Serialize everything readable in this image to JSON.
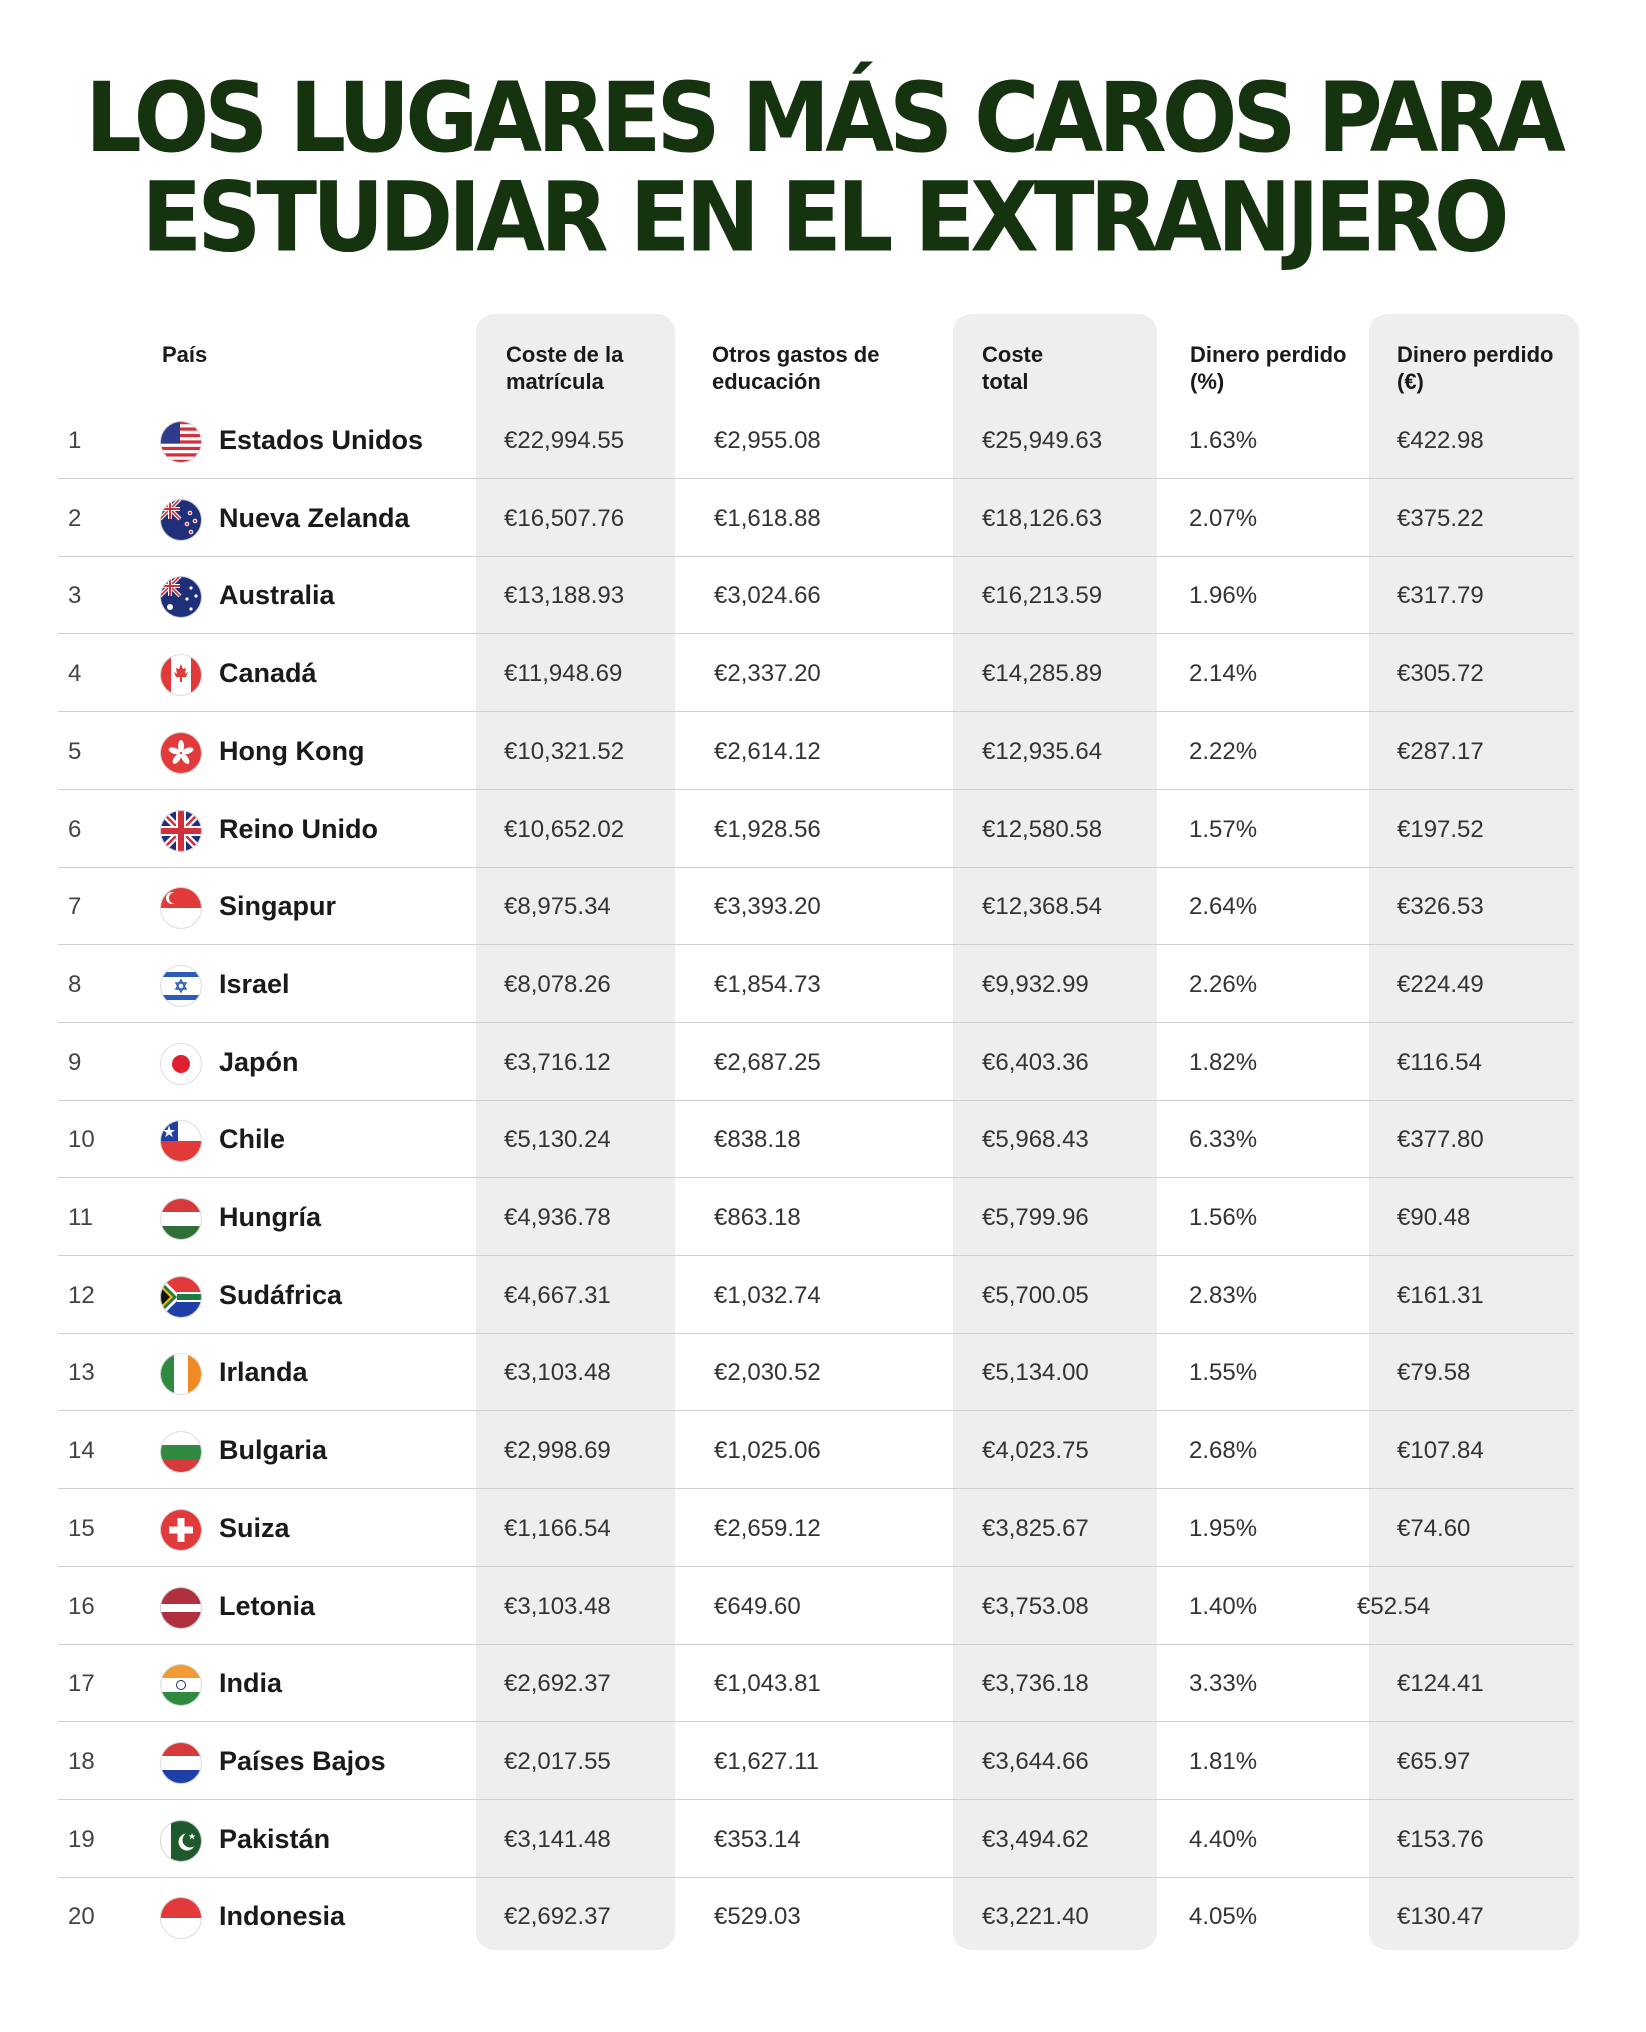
{
  "title": {
    "line1": "LOS LUGARES MÁS CAROS PARA",
    "line2": "ESTUDIAR EN EL EXTRANJERO"
  },
  "colors": {
    "title": "#15330f",
    "highlight_band": "#eeefec",
    "separator": "#cfd1cc"
  },
  "headers": {
    "country": "País",
    "tuition": [
      "Coste de la",
      "matrícula"
    ],
    "other": [
      "Otros gastos de",
      "educación"
    ],
    "total": [
      "Coste",
      "total"
    ],
    "lost_pct": [
      "Dinero perdido",
      "(%)"
    ],
    "lost_eur": [
      "Dinero perdido",
      "(€)"
    ]
  },
  "chart_data": {
    "type": "table",
    "columns": [
      "",
      "País",
      "Coste de la matrícula",
      "Otros gastos de educación",
      "Coste total",
      "Dinero perdido (%)",
      "Dinero perdido (€)"
    ],
    "rows": [
      {
        "rank": "1",
        "flag": "usa-flag",
        "country": "Estados Unidos",
        "tuition": "€22,994.55",
        "other": "€2,955.08",
        "total": "€25,949.63",
        "lost_pct": "1.63%",
        "lost_eur": "€422.98"
      },
      {
        "rank": "2",
        "flag": "new-zealand-flag",
        "country": "Nueva Zelanda",
        "tuition": "€16,507.76",
        "other": "€1,618.88",
        "total": "€18,126.63",
        "lost_pct": "2.07%",
        "lost_eur": "€375.22"
      },
      {
        "rank": "3",
        "flag": "australia-flag",
        "country": "Australia",
        "tuition": "€13,188.93",
        "other": "€3,024.66",
        "total": "€16,213.59",
        "lost_pct": "1.96%",
        "lost_eur": "€317.79"
      },
      {
        "rank": "4",
        "flag": "canada-flag",
        "country": "Canadá",
        "tuition": "€11,948.69",
        "other": "€2,337.20",
        "total": "€14,285.89",
        "lost_pct": "2.14%",
        "lost_eur": "€305.72"
      },
      {
        "rank": "5",
        "flag": "hong-kong-flag",
        "country": "Hong Kong",
        "tuition": "€10,321.52",
        "other": "€2,614.12",
        "total": "€12,935.64",
        "lost_pct": "2.22%",
        "lost_eur": "€287.17"
      },
      {
        "rank": "6",
        "flag": "uk-flag",
        "country": "Reino Unido",
        "tuition": "€10,652.02",
        "other": "€1,928.56",
        "total": "€12,580.58",
        "lost_pct": "1.57%",
        "lost_eur": "€197.52"
      },
      {
        "rank": "7",
        "flag": "singapore-flag",
        "country": "Singapur",
        "tuition": "€8,975.34",
        "other": "€3,393.20",
        "total": "€12,368.54",
        "lost_pct": "2.64%",
        "lost_eur": "€326.53"
      },
      {
        "rank": "8",
        "flag": "israel-flag",
        "country": "Israel",
        "tuition": "€8,078.26",
        "other": "€1,854.73",
        "total": "€9,932.99",
        "lost_pct": "2.26%",
        "lost_eur": "€224.49"
      },
      {
        "rank": "9",
        "flag": "japan-flag",
        "country": "Japón",
        "tuition": "€3,716.12",
        "other": "€2,687.25",
        "total": "€6,403.36",
        "lost_pct": "1.82%",
        "lost_eur": "€116.54"
      },
      {
        "rank": "10",
        "flag": "chile-flag",
        "country": "Chile",
        "tuition": "€5,130.24",
        "other": "€838.18",
        "total": "€5,968.43",
        "lost_pct": "6.33%",
        "lost_eur": "€377.80"
      },
      {
        "rank": "11",
        "flag": "hungary-flag",
        "country": "Hungría",
        "tuition": "€4,936.78",
        "other": "€863.18",
        "total": "€5,799.96",
        "lost_pct": "1.56%",
        "lost_eur": "€90.48"
      },
      {
        "rank": "12",
        "flag": "south-africa-flag",
        "country": "Sudáfrica",
        "tuition": "€4,667.31",
        "other": "€1,032.74",
        "total": "€5,700.05",
        "lost_pct": "2.83%",
        "lost_eur": "€161.31"
      },
      {
        "rank": "13",
        "flag": "ireland-flag",
        "country": "Irlanda",
        "tuition": "€3,103.48",
        "other": "€2,030.52",
        "total": "€5,134.00",
        "lost_pct": "1.55%",
        "lost_eur": "€79.58"
      },
      {
        "rank": "14",
        "flag": "bulgaria-flag",
        "country": "Bulgaria",
        "tuition": "€2,998.69",
        "other": "€1,025.06",
        "total": "€4,023.75",
        "lost_pct": "2.68%",
        "lost_eur": "€107.84"
      },
      {
        "rank": "15",
        "flag": "switzerland-flag",
        "country": "Suiza",
        "tuition": "€1,166.54",
        "other": "€2,659.12",
        "total": "€3,825.67",
        "lost_pct": "1.95%",
        "lost_eur": "€74.60"
      },
      {
        "rank": "16",
        "flag": "latvia-flag",
        "country": "Letonia",
        "tuition": "€3,103.48",
        "other": "€649.60",
        "total": "€3,753.08",
        "lost_pct": "1.40%",
        "lost_eur": "€52.54"
      },
      {
        "rank": "17",
        "flag": "india-flag",
        "country": "India",
        "tuition": "€2,692.37",
        "other": "€1,043.81",
        "total": "€3,736.18",
        "lost_pct": "3.33%",
        "lost_eur": "€124.41"
      },
      {
        "rank": "18",
        "flag": "netherlands-flag",
        "country": "Países Bajos",
        "tuition": "€2,017.55",
        "other": "€1,627.11",
        "total": "€3,644.66",
        "lost_pct": "1.81%",
        "lost_eur": "€65.97"
      },
      {
        "rank": "19",
        "flag": "pakistan-flag",
        "country": "Pakistán",
        "tuition": "€3,141.48",
        "other": "€353.14",
        "total": "€3,494.62",
        "lost_pct": "4.40%",
        "lost_eur": "€153.76"
      },
      {
        "rank": "20",
        "flag": "indonesia-flag",
        "country": "Indonesia",
        "tuition": "€2,692.37",
        "other": "€529.03",
        "total": "€3,221.40",
        "lost_pct": "4.05%",
        "lost_eur": "€130.47"
      }
    ]
  }
}
